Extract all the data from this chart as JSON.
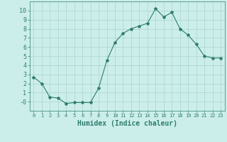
{
  "x": [
    0,
    1,
    2,
    3,
    4,
    5,
    6,
    7,
    8,
    9,
    10,
    11,
    12,
    13,
    14,
    15,
    16,
    17,
    18,
    19,
    20,
    21,
    22,
    23
  ],
  "y": [
    2.7,
    2.0,
    0.5,
    0.4,
    -0.2,
    -0.1,
    -0.1,
    -0.1,
    1.5,
    4.5,
    6.5,
    7.5,
    8.0,
    8.3,
    8.6,
    10.2,
    9.3,
    9.8,
    8.0,
    7.3,
    6.3,
    5.0,
    4.8,
    4.8
  ],
  "line_color": "#2e7d6e",
  "marker": "*",
  "marker_size": 3,
  "bg_color": "#cceeea",
  "grid_color": "#aad4ce",
  "xlabel": "Humidex (Indice chaleur)",
  "ylim": [
    -1,
    11
  ],
  "xlim": [
    -0.5,
    23.5
  ],
  "yticks": [
    0,
    1,
    2,
    3,
    4,
    5,
    6,
    7,
    8,
    9,
    10
  ],
  "xticks": [
    0,
    1,
    2,
    3,
    4,
    5,
    6,
    7,
    8,
    9,
    10,
    11,
    12,
    13,
    14,
    15,
    16,
    17,
    18,
    19,
    20,
    21,
    22,
    23
  ],
  "label_color": "#2e7d6e",
  "tick_color": "#2e7d6e",
  "axis_color": "#2e7d6e",
  "xlabel_fontsize": 7,
  "tick_fontsize_x": 5,
  "tick_fontsize_y": 6
}
